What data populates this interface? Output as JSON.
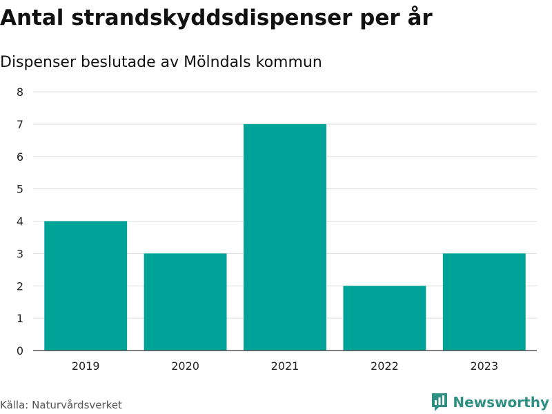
{
  "header": {
    "title": "Antal strandskyddsdispenser per år",
    "subtitle": "Dispenser beslutade av Mölndals kommun"
  },
  "footer": {
    "source": "Källa: Naturvårdsverket",
    "brand": "Newsworthy",
    "brand_icon": "bar-chart-icon"
  },
  "colors": {
    "bar": "#00a398",
    "grid": "#dddddd",
    "axis": "#333333",
    "brand": "#2f8f83"
  },
  "chart_data": {
    "type": "bar",
    "title": "Antal strandskyddsdispenser per år",
    "subtitle": "Dispenser beslutade av Mölndals kommun",
    "categories": [
      "2019",
      "2020",
      "2021",
      "2022",
      "2023"
    ],
    "values": [
      4,
      3,
      7,
      2,
      3
    ],
    "xlabel": "",
    "ylabel": "",
    "ylim": [
      0,
      8
    ],
    "yticks": [
      0,
      1,
      2,
      3,
      4,
      5,
      6,
      7,
      8
    ],
    "grid": true,
    "legend": "none"
  }
}
